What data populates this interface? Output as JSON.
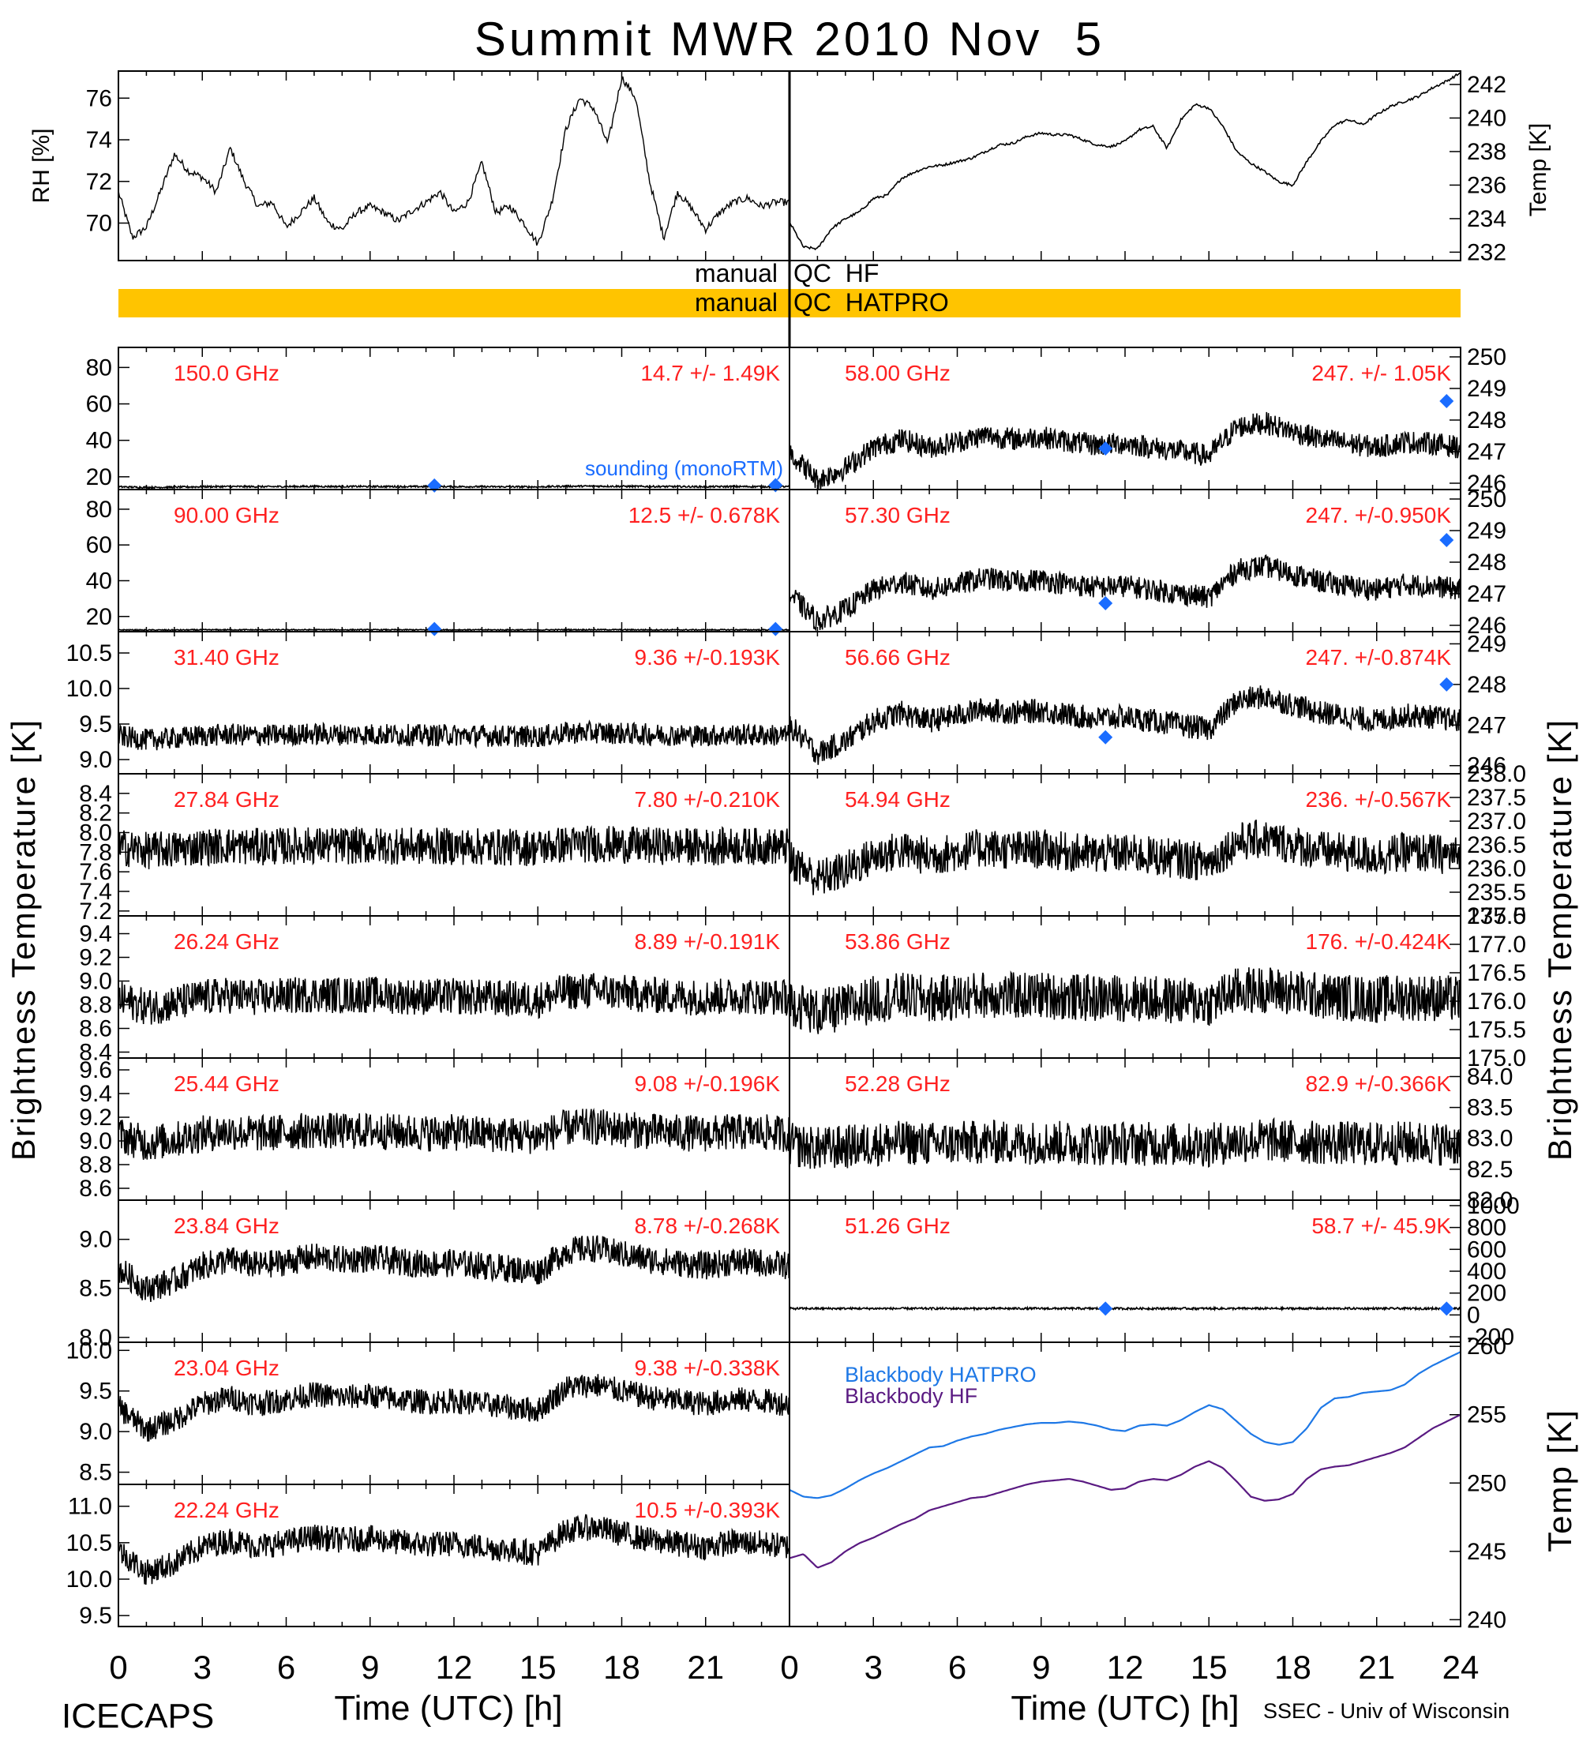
{
  "page": {
    "title": "Summit MWR 2010 Nov  5",
    "project": "ICECAPS",
    "credit": "SSEC - Univ of Wisconsin",
    "colors": {
      "label_red": "#ff2020",
      "sounding_blue": "#1a6cff",
      "qc_bar": "#ffc400",
      "blackbody_hatpro": "#1e78e6",
      "blackbody_hf": "#5a1a82",
      "trace": "#000000"
    }
  },
  "qc_bars": {
    "hf": {
      "left": "manual",
      "right": "QC  HF"
    },
    "hatpro": {
      "left": "manual",
      "right": "QC  HATPRO"
    }
  },
  "axis_labels": {
    "rh": "RH [%]",
    "temp_top": "Temp [K]",
    "tb_left": "Brightness Temperature [K]",
    "tb_right": "Brightness Temperature [K]",
    "temp_bottom": "Temp [K]",
    "x_left": "Time (UTC) [h]",
    "x_right": "Time (UTC) [h]"
  },
  "x_ticks": [
    "0",
    "3",
    "6",
    "9",
    "12",
    "15",
    "18",
    "21",
    "24"
  ],
  "chart_data": [
    {
      "type": "line",
      "id": "rh",
      "ylabel": "RH [%]",
      "ylim": [
        68.2,
        77.3
      ],
      "yticks": [
        "70",
        "72",
        "74",
        "76"
      ],
      "x": [
        0,
        0.5,
        1,
        1.5,
        2,
        2.5,
        3,
        3.5,
        4,
        4.5,
        5,
        5.5,
        6,
        6.5,
        7,
        7.5,
        8,
        8.5,
        9,
        9.5,
        10,
        10.5,
        11,
        11.5,
        12,
        12.5,
        13,
        13.5,
        14,
        14.5,
        15,
        15.5,
        16,
        16.5,
        17,
        17.5,
        18,
        18.5,
        19,
        19.5,
        20,
        20.5,
        21,
        21.5,
        22,
        22.5,
        23,
        23.5,
        24
      ],
      "y": [
        71.5,
        69.3,
        69.8,
        71.5,
        73.3,
        72.5,
        72.2,
        71.5,
        73.6,
        72.0,
        70.8,
        71.0,
        69.8,
        70.5,
        71.2,
        70.0,
        69.7,
        70.5,
        70.8,
        70.5,
        70.1,
        70.6,
        71.0,
        71.5,
        70.5,
        71.0,
        72.9,
        70.5,
        70.8,
        70.0,
        69.0,
        71.0,
        74.5,
        76.0,
        75.5,
        73.8,
        77.0,
        76.0,
        72.0,
        69.3,
        71.5,
        70.7,
        69.7,
        70.5,
        71.0,
        71.2,
        70.8,
        71.0,
        71.0
      ]
    },
    {
      "type": "line",
      "id": "temp_top",
      "ylabel": "Temp [K]",
      "ylim": [
        231.5,
        242.8
      ],
      "yticks": [
        "232",
        "234",
        "236",
        "238",
        "240",
        "242"
      ],
      "x": [
        0,
        0.5,
        1,
        1.5,
        2,
        2.5,
        3,
        3.5,
        4,
        4.5,
        5,
        5.5,
        6,
        6.5,
        7,
        7.5,
        8,
        8.5,
        9,
        9.5,
        10,
        10.5,
        11,
        11.5,
        12,
        12.5,
        13,
        13.5,
        14,
        14.5,
        15,
        15.5,
        16,
        16.5,
        17,
        17.5,
        18,
        18.5,
        19,
        19.5,
        20,
        20.5,
        21,
        21.5,
        22,
        22.5,
        23,
        23.5,
        24
      ],
      "y": [
        233.8,
        232.3,
        232.2,
        233.4,
        234.0,
        234.4,
        235.2,
        235.4,
        236.4,
        236.8,
        237.1,
        237.2,
        237.4,
        237.6,
        238.0,
        238.4,
        238.5,
        238.9,
        239.1,
        239.0,
        239.0,
        238.7,
        238.4,
        238.3,
        238.6,
        239.3,
        239.5,
        238.2,
        239.9,
        240.8,
        240.6,
        239.5,
        238.0,
        237.3,
        236.8,
        236.2,
        236.0,
        237.4,
        238.6,
        239.6,
        239.9,
        239.6,
        240.2,
        240.7,
        241.0,
        241.3,
        241.8,
        242.2,
        242.7
      ]
    },
    {
      "type": "line",
      "id": "ch_150",
      "label": "150.0 GHz",
      "stats": "14.7 +/-  1.49K",
      "ylim": [
        13,
        91
      ],
      "yticks": [
        "20",
        "40",
        "60",
        "80"
      ],
      "base": 14.5,
      "trend": 1.0,
      "noise": 0.4,
      "soundings": [
        [
          11.3,
          15.2
        ],
        [
          23.5,
          15.4
        ]
      ],
      "sounding_label": "sounding (monoRTM)"
    },
    {
      "type": "line",
      "id": "ch_90",
      "label": "90.00 GHz",
      "stats": "12.5 +/- 0.678K",
      "ylim": [
        11.5,
        91
      ],
      "yticks": [
        "20",
        "40",
        "60",
        "80"
      ],
      "base": 12.5,
      "trend": 0.3,
      "noise": 0.25,
      "soundings": [
        [
          11.3,
          13.0
        ],
        [
          23.5,
          13.0
        ]
      ]
    },
    {
      "type": "line",
      "id": "ch_31_40",
      "label": "31.40 GHz",
      "stats": "9.36 +/-0.193K",
      "ylim": [
        8.8,
        10.8
      ],
      "yticks": [
        "9.0",
        "9.5",
        "10.0",
        "10.5"
      ],
      "base": 9.33,
      "trend": 0.15,
      "noise": 0.13
    },
    {
      "type": "line",
      "id": "ch_27_84",
      "label": "27.84 GHz",
      "stats": "7.80 +/-0.210K",
      "ylim": [
        7.15,
        8.6
      ],
      "yticks": [
        "7.2",
        "7.4",
        "7.6",
        "7.8",
        "8.0",
        "8.2",
        "8.4"
      ],
      "base": 7.85,
      "trend": 0.1,
      "noise": 0.16
    },
    {
      "type": "line",
      "id": "ch_26_24",
      "label": "26.24 GHz",
      "stats": "8.89 +/-0.191K",
      "ylim": [
        8.35,
        9.55
      ],
      "yticks": [
        "8.4",
        "8.6",
        "8.8",
        "9.0",
        "9.2",
        "9.4"
      ],
      "base": 8.85,
      "trend": 0.2,
      "noise": 0.13
    },
    {
      "type": "line",
      "id": "ch_25_44",
      "label": "25.44 GHz",
      "stats": "9.08 +/-0.196K",
      "ylim": [
        8.5,
        9.7
      ],
      "yticks": [
        "8.6",
        "8.8",
        "9.0",
        "9.2",
        "9.4",
        "9.6"
      ],
      "base": 9.05,
      "trend": 0.2,
      "noise": 0.13
    },
    {
      "type": "line",
      "id": "ch_23_84",
      "label": "23.84 GHz",
      "stats": "8.78 +/-0.268K",
      "ylim": [
        7.95,
        9.4
      ],
      "yticks": [
        "8.0",
        "8.5",
        "9.0"
      ],
      "base": 8.7,
      "trend": 0.6,
      "noise": 0.12
    },
    {
      "type": "line",
      "id": "ch_23_04",
      "label": "23.04 GHz",
      "stats": "9.38 +/-0.338K",
      "ylim": [
        8.35,
        10.1
      ],
      "yticks": [
        "8.5",
        "9.0",
        "9.5",
        "10.0"
      ],
      "base": 9.3,
      "trend": 0.8,
      "noise": 0.13
    },
    {
      "type": "line",
      "id": "ch_22_24",
      "label": "22.24 GHz",
      "stats": "10.5 +/-0.393K",
      "ylim": [
        9.35,
        11.3
      ],
      "yticks": [
        "9.5",
        "10.0",
        "10.5",
        "11.0"
      ],
      "base": 10.4,
      "trend": 0.9,
      "noise": 0.15
    },
    {
      "type": "line",
      "id": "ch_58_00",
      "label": "58.00 GHz",
      "stats": "247. +/- 1.05K",
      "ylim": [
        245.8,
        250.3
      ],
      "yticks": [
        "246",
        "247",
        "248",
        "249",
        "250"
      ],
      "base": 247.0,
      "trend": 2.6,
      "noise": 0.3,
      "soundings": [
        [
          11.3,
          247.1
        ],
        [
          23.5,
          248.6
        ]
      ]
    },
    {
      "type": "line",
      "id": "ch_57_30",
      "label": "57.30 GHz",
      "stats": "247. +/-0.950K",
      "ylim": [
        245.8,
        250.3
      ],
      "yticks": [
        "246",
        "247",
        "248",
        "249",
        "250"
      ],
      "base": 247.0,
      "trend": 2.5,
      "noise": 0.3,
      "soundings": [
        [
          11.3,
          246.7
        ],
        [
          23.5,
          248.7
        ]
      ]
    },
    {
      "type": "line",
      "id": "ch_56_66",
      "label": "56.66 GHz",
      "stats": "247. +/-0.874K",
      "ylim": [
        245.8,
        249.3
      ],
      "yticks": [
        "246",
        "247",
        "248",
        "249"
      ],
      "base": 247.0,
      "trend": 2.0,
      "noise": 0.25,
      "soundings": [
        [
          11.3,
          246.7
        ],
        [
          23.5,
          248.0
        ]
      ]
    },
    {
      "type": "line",
      "id": "ch_54_94",
      "label": "54.94 GHz",
      "stats": "236. +/-0.567K",
      "ylim": [
        235.0,
        238.0
      ],
      "yticks": [
        "235.0",
        "235.5",
        "236.0",
        "236.5",
        "237.0",
        "237.5",
        "238.0"
      ],
      "base": 236.2,
      "trend": 1.2,
      "noise": 0.35
    },
    {
      "type": "line",
      "id": "ch_53_86",
      "label": "53.86 GHz",
      "stats": "176. +/-0.424K",
      "ylim": [
        175.0,
        177.5
      ],
      "yticks": [
        "175.0",
        "175.5",
        "176.0",
        "176.5",
        "177.0",
        "177.5"
      ],
      "base": 176.0,
      "trend": 0.6,
      "noise": 0.35
    },
    {
      "type": "line",
      "id": "ch_52_28",
      "label": "52.28 GHz",
      "stats": "82.9 +/-0.366K",
      "ylim": [
        82.0,
        84.3
      ],
      "yticks": [
        "82.0",
        "82.5",
        "83.0",
        "83.5",
        "84.0"
      ],
      "base": 82.9,
      "trend": 0.2,
      "noise": 0.3
    },
    {
      "type": "line",
      "id": "ch_51_26",
      "label": "51.26 GHz",
      "stats": "58.7 +/- 45.9K",
      "ylim": [
        -250,
        1050
      ],
      "yticks": [
        "-200",
        "0",
        "200",
        "400",
        "600",
        "800",
        "1000"
      ],
      "base": 58.7,
      "trend": 0.0,
      "noise": 8,
      "soundings": [
        [
          11.3,
          58
        ],
        [
          23.5,
          58
        ]
      ]
    },
    {
      "type": "line",
      "id": "blackbody",
      "ylabel": "Temp [K]",
      "ylim": [
        239.5,
        260.3
      ],
      "yticks": [
        "240",
        "245",
        "250",
        "255",
        "260"
      ],
      "x": [
        0,
        0.5,
        1,
        1.5,
        2,
        2.5,
        3,
        3.5,
        4,
        4.5,
        5,
        5.5,
        6,
        6.5,
        7,
        7.5,
        8,
        8.5,
        9,
        9.5,
        10,
        10.5,
        11,
        11.5,
        12,
        12.5,
        13,
        13.5,
        14,
        14.5,
        15,
        15.5,
        16,
        16.5,
        17,
        17.5,
        18,
        18.5,
        19,
        19.5,
        20,
        20.5,
        21,
        21.5,
        22,
        22.5,
        23,
        23.5,
        24
      ],
      "series": [
        {
          "name": "Blackbody HATPRO",
          "color": "#1e78e6",
          "values": [
            249.5,
            249.0,
            248.9,
            249.1,
            249.6,
            250.2,
            250.7,
            251.1,
            251.6,
            252.1,
            252.6,
            252.7,
            253.1,
            253.4,
            253.6,
            253.9,
            254.1,
            254.3,
            254.4,
            254.4,
            254.5,
            254.4,
            254.2,
            253.9,
            253.8,
            254.2,
            254.3,
            254.2,
            254.6,
            255.2,
            255.7,
            255.4,
            254.5,
            253.6,
            253.0,
            252.8,
            253.0,
            254.0,
            255.5,
            256.2,
            256.3,
            256.6,
            256.7,
            256.8,
            257.2,
            258.0,
            258.6,
            259.1,
            259.6
          ]
        },
        {
          "name": "Blackbody HF",
          "color": "#5a1a82",
          "values": [
            244.5,
            244.8,
            243.8,
            244.2,
            245.0,
            245.6,
            246.0,
            246.5,
            247.0,
            247.4,
            248.0,
            248.3,
            248.6,
            248.9,
            249.0,
            249.3,
            249.6,
            249.9,
            250.1,
            250.2,
            250.3,
            250.1,
            249.8,
            249.5,
            249.6,
            250.1,
            250.3,
            250.2,
            250.6,
            251.2,
            251.6,
            251.1,
            250.1,
            249.0,
            248.7,
            248.8,
            249.2,
            250.3,
            251.0,
            251.2,
            251.3,
            251.6,
            251.9,
            252.2,
            252.6,
            253.3,
            254.0,
            254.5,
            255.0
          ]
        }
      ]
    }
  ]
}
